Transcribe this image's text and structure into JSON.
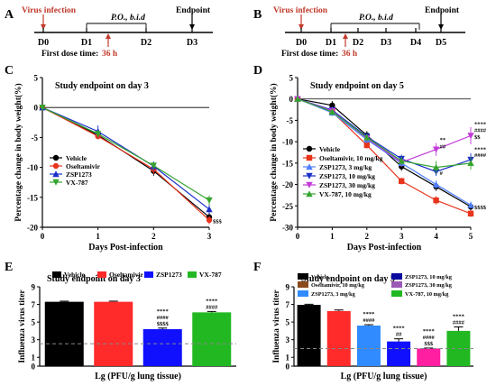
{
  "panel_a": {
    "letter": "A",
    "infection_label": "Virus infection",
    "regimen_label": "P.O., b.i.d",
    "endpoint_label": "Endpoint",
    "days": [
      "D0",
      "D1",
      "D2",
      "D3"
    ],
    "first_dose_label": "First dose time:",
    "first_dose_value": "36 h"
  },
  "panel_b": {
    "letter": "B",
    "infection_label": "Virus infection",
    "regimen_label": "P.O., b.i.d",
    "endpoint_label": "Endpoint",
    "days": [
      "D0",
      "D1",
      "D2",
      "D3",
      "D4",
      "D5"
    ],
    "first_dose_label": "First dose time:",
    "first_dose_value": "36 h"
  },
  "colors": {
    "vehicle": "#000000",
    "oseltamivir": "#e8341c",
    "zsp_low": "#4f7fff",
    "zsp_mid": "#1a2fc9",
    "zsp_high": "#c23bd9",
    "vx787": "#36a42f",
    "infection_text": "#c0392b",
    "arrow": "#c0392b",
    "bar_red": "#ff2a2a",
    "bar_blue": "#1010ff",
    "bar_green": "#22b822",
    "bar_light_blue": "#2f8bff",
    "bar_pink": "#ff1fa0",
    "bar_brown": "#8b4a1c",
    "bar_purple": "#9b59b6",
    "bar_dark_blue": "#0a0aa0"
  },
  "chart_data": [
    {
      "panel": "C",
      "type": "line",
      "title": "Study endpoint on day 3",
      "xlabel": "Days Post-infection",
      "ylabel": "Percentage change in body weight(%)",
      "x": [
        0,
        1,
        2,
        3
      ],
      "xlim": [
        0,
        3
      ],
      "ylim": [
        -20,
        5
      ],
      "yticks": [
        5,
        0,
        -5,
        -10,
        -15,
        -20
      ],
      "series": [
        {
          "name": "Vehicle",
          "color_key": "vehicle",
          "marker": "circle",
          "values": [
            0,
            -4.6,
            -10.6,
            -18.3
          ],
          "errors": [
            0,
            0.5,
            0.8,
            0.8
          ]
        },
        {
          "name": "Oseltamivir",
          "color_key": "oseltamivir",
          "marker": "circle",
          "values": [
            0,
            -4.8,
            -10.3,
            -18.8
          ],
          "errors": [
            0,
            0.5,
            0.8,
            0.7
          ]
        },
        {
          "name": "ZSP1273",
          "color_key": "zsp_mid",
          "marker": "triangle",
          "values": [
            0,
            -4.0,
            -9.8,
            -17.0
          ],
          "errors": [
            0,
            1.0,
            0.8,
            0.8
          ]
        },
        {
          "name": "VX-787",
          "color_key": "vx787",
          "marker": "triangle-down",
          "values": [
            0,
            -4.4,
            -9.7,
            -15.5
          ],
          "errors": [
            0,
            0.6,
            0.6,
            0.8
          ]
        }
      ],
      "annotations": [
        {
          "text": "$$$",
          "x": 3,
          "y": -19.3
        }
      ]
    },
    {
      "panel": "D",
      "type": "line",
      "title": "Study endpoint on day 5",
      "xlabel": "Days Post-infection",
      "ylabel": "Percentage change in body weight(%)",
      "x": [
        0,
        1,
        2,
        3,
        4,
        5
      ],
      "xlim": [
        0,
        5
      ],
      "ylim": [
        -30,
        5
      ],
      "yticks": [
        5,
        0,
        -5,
        -10,
        -15,
        -20,
        -25,
        -30
      ],
      "series": [
        {
          "name": "Vehicle",
          "color_key": "vehicle",
          "marker": "circle",
          "values": [
            0,
            -1.5,
            -8.5,
            -15.8,
            -20.5,
            -25.2
          ],
          "errors": [
            0,
            1.0,
            1.0,
            1.0,
            1.0,
            0.8
          ]
        },
        {
          "name": "Oseltamivir, 10 mg/kg",
          "color_key": "oseltamivir",
          "marker": "square",
          "values": [
            0,
            -3.0,
            -10.8,
            -19.2,
            -23.7,
            -26.8
          ],
          "errors": [
            0,
            0.8,
            0.8,
            0.8,
            1.0,
            0.8
          ]
        },
        {
          "name": "ZSP1273, 3 mg/kg",
          "color_key": "zsp_low",
          "marker": "triangle",
          "values": [
            0,
            -3.2,
            -9.5,
            -15.0,
            -20.0,
            -24.8
          ],
          "errors": [
            0,
            0.8,
            0.8,
            0.8,
            1.0,
            0.8
          ]
        },
        {
          "name": "ZSP1273, 10 mg/kg",
          "color_key": "zsp_mid",
          "marker": "triangle-down",
          "values": [
            0,
            -2.6,
            -8.8,
            -14.0,
            -17.0,
            -14.2
          ],
          "errors": [
            0,
            0.8,
            0.8,
            1.0,
            1.0,
            1.5
          ]
        },
        {
          "name": "ZSP1273, 30 mg/kg",
          "color_key": "zsp_high",
          "marker": "triangle-down",
          "values": [
            0,
            -2.8,
            -9.2,
            -14.8,
            -11.8,
            -8.6
          ],
          "errors": [
            0,
            0.8,
            0.8,
            1.0,
            1.5,
            2.0
          ]
        },
        {
          "name": "VX-787, 10 mg/kg",
          "color_key": "vx787",
          "marker": "triangle",
          "values": [
            0,
            -3.0,
            -9.0,
            -14.5,
            -16.0,
            -15.0
          ],
          "errors": [
            0,
            0.8,
            0.8,
            1.0,
            1.5,
            1.5
          ]
        }
      ],
      "annotations": [
        {
          "text": "**",
          "x": 4,
          "y": -10.0
        },
        {
          "text": "##",
          "x": 4,
          "y": -11.5
        },
        {
          "text": "#",
          "x": 4,
          "y": -17.8
        },
        {
          "text": "****",
          "x": 5,
          "y": -6.3
        },
        {
          "text": "####",
          "x": 5,
          "y": -7.8
        },
        {
          "text": "$$",
          "x": 5,
          "y": -9.3
        },
        {
          "text": "****",
          "x": 5,
          "y": -12.2
        },
        {
          "text": "####",
          "x": 5,
          "y": -13.6
        },
        {
          "text": "$$$$",
          "x": 5,
          "y": -25.8
        }
      ]
    },
    {
      "panel": "E",
      "type": "bar",
      "title": "Study endpoint on day 3",
      "xlabel": "Lg (PFU/g lung tissue)",
      "ylabel": "Influenza virus titer",
      "ylim": [
        0,
        9
      ],
      "yticks": [
        0,
        1,
        3,
        5,
        7,
        9
      ],
      "threshold": 2.55,
      "categories": [
        "Vehicle",
        "Oseltamivir",
        "ZSP1273",
        "VX-787"
      ],
      "values": [
        7.3,
        7.3,
        4.2,
        6.1
      ],
      "errors": [
        0.07,
        0.07,
        0.12,
        0.1
      ],
      "color_keys": [
        "vehicle",
        "bar_red",
        "bar_blue",
        "bar_green"
      ],
      "significance": [
        [],
        [],
        [
          "****",
          "####",
          "$$$$"
        ],
        [
          "****",
          "####"
        ]
      ]
    },
    {
      "panel": "F",
      "type": "bar",
      "title": "Study endpoint on day 5",
      "xlabel": "Lg (PFU/g lung tissue)",
      "ylabel": "Influenza virus titer",
      "ylim": [
        0,
        9
      ],
      "yticks": [
        0,
        1,
        3,
        5,
        7,
        9
      ],
      "threshold": 2.0,
      "categories": [
        "Vehicle",
        "Oseltamivir, 10 mg/kg",
        "ZSP1273,  3 mg/kg",
        "ZSP1273,  10 mg/kg",
        "ZSP1273,  30 mg/kg",
        "VX-787, 10 mg/kg"
      ],
      "values": [
        6.95,
        6.25,
        4.6,
        2.8,
        2.0,
        4.0
      ],
      "errors": [
        0.07,
        0.12,
        0.1,
        0.3,
        0.05,
        0.45
      ],
      "color_keys": [
        "vehicle",
        "bar_red",
        "bar_light_blue",
        "bar_blue",
        "bar_pink",
        "bar_green"
      ],
      "legend_color_keys": [
        "vehicle",
        "bar_brown",
        "bar_light_blue",
        "bar_dark_blue",
        "bar_purple",
        "bar_green"
      ],
      "significance": [
        [],
        [],
        [
          "****",
          "####"
        ],
        [
          "****",
          "##"
        ],
        [
          "****",
          "####",
          "$$$"
        ],
        [
          "****",
          "####"
        ]
      ]
    }
  ]
}
